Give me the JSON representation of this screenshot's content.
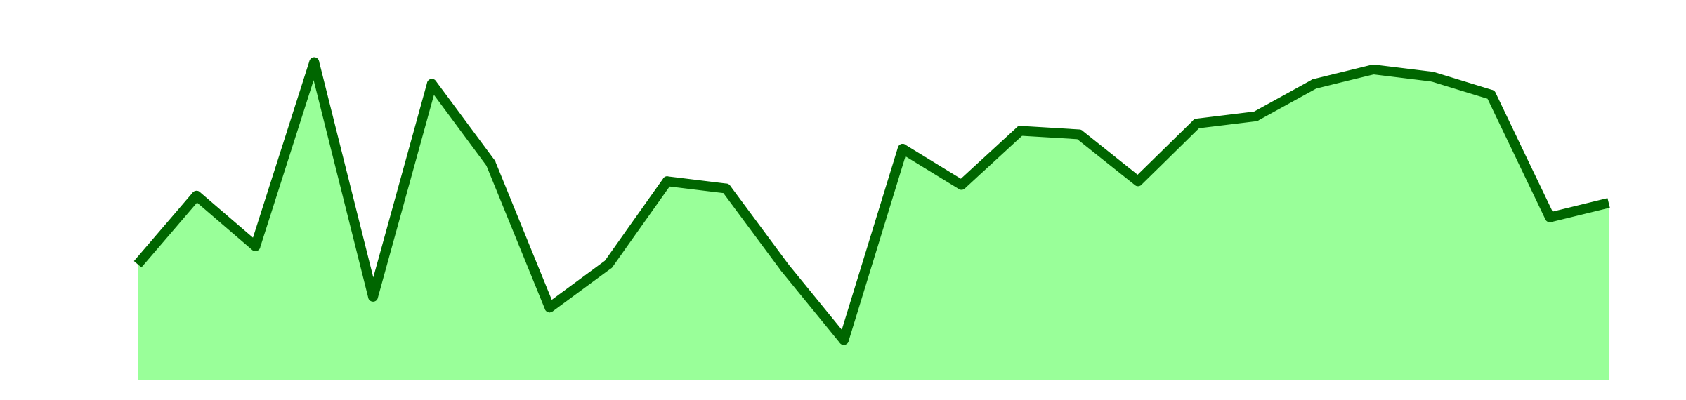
{
  "colors": {
    "background": "#ffffff",
    "area_fill": "#99ff99",
    "line_stroke": "#006600"
  },
  "chart_data": {
    "type": "area",
    "title": "",
    "xlabel": "",
    "ylabel": "",
    "grid": false,
    "legend": "none",
    "axes_visible": false,
    "ylim": [
      0,
      100
    ],
    "x": [
      0,
      1,
      2,
      3,
      4,
      5,
      6,
      7,
      8,
      9,
      10,
      11,
      12,
      13,
      14,
      15,
      16,
      17,
      18,
      19,
      20,
      21,
      22,
      23,
      24,
      25
    ],
    "values": [
      32,
      51,
      37,
      88,
      23,
      82,
      60,
      20,
      32,
      55,
      53,
      31,
      11,
      64,
      54,
      69,
      68,
      55,
      71,
      73,
      82,
      86,
      84,
      79,
      45,
      49
    ]
  }
}
